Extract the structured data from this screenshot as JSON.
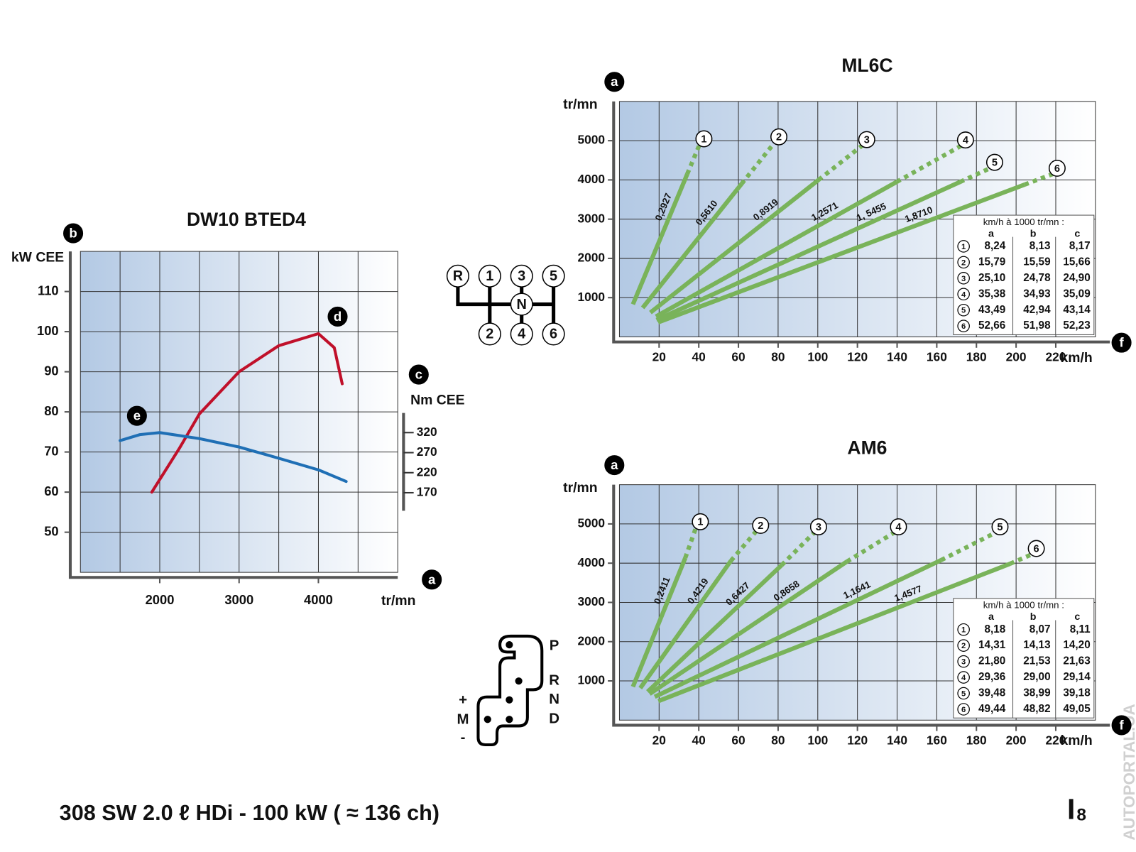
{
  "chart_data": [
    {
      "type": "line",
      "title": "DW10 BTED4",
      "x_label": "tr/mn",
      "y_label": "kW CEE",
      "y2_label": "Nm CEE",
      "xlim": [
        1000,
        5000
      ],
      "xticks": [
        2000,
        3000,
        4000
      ],
      "xgrid": [
        1500,
        2000,
        2500,
        3000,
        3500,
        4000,
        4500
      ],
      "ylim": [
        40,
        120
      ],
      "yticks": [
        50,
        60,
        70,
        80,
        90,
        100,
        110
      ],
      "grid": true,
      "y2lim": [
        125,
        369
      ],
      "y2ticks": [
        170,
        220,
        270,
        320
      ],
      "annotations": [
        "b",
        "c",
        "d",
        "e",
        "a"
      ],
      "series": [
        {
          "color": "#c0102a",
          "x": [
            1900,
            2250,
            2500,
            3000,
            3500,
            4000,
            4200,
            4300
          ],
          "values": [
            60,
            71,
            79.5,
            90,
            96.5,
            99.5,
            96,
            87
          ]
        },
        {
          "color": "#1f6fb5",
          "axis": "y2",
          "x": [
            1500,
            1750,
            2000,
            2500,
            3000,
            3500,
            4000,
            4350
          ],
          "values": [
            300,
            315,
            320,
            305,
            284,
            256,
            227,
            198
          ]
        }
      ]
    },
    {
      "type": "gear",
      "title": "ML6C",
      "x_label": "km/h",
      "y_label": "tr/mn",
      "xlim": [
        0,
        240
      ],
      "xticks": [
        20,
        40,
        60,
        80,
        100,
        120,
        140,
        160,
        180,
        200,
        220
      ],
      "ylim": [
        0,
        6000
      ],
      "yticks": [
        1000,
        2000,
        3000,
        4000,
        5000
      ],
      "grid": true,
      "dashed_last_segment": true,
      "annotations": [
        "a",
        "f"
      ],
      "series": [
        {
          "name": "1",
          "ratio": "0,2927",
          "color": "#79b35a",
          "x": [
            6.8,
            34.2,
            40.4
          ],
          "values": [
            830,
            4150,
            4900
          ]
        },
        {
          "name": "2",
          "ratio": "0,5610",
          "color": "#79b35a",
          "x": [
            11.7,
            61.6,
            78.2
          ],
          "values": [
            740,
            3900,
            4950
          ]
        },
        {
          "name": "3",
          "ratio": "0,8919",
          "color": "#79b35a",
          "x": [
            15.6,
            100.4,
            122.5
          ],
          "values": [
            620,
            4000,
            4880
          ]
        },
        {
          "name": "4",
          "ratio": "1,2571",
          "color": "#79b35a",
          "x": [
            18.4,
            139.8,
            172.3
          ],
          "values": [
            520,
            3950,
            4870
          ]
        },
        {
          "name": "5",
          "ratio": "1, 5455",
          "color": "#79b35a",
          "x": [
            18.7,
            171.8,
            187.0
          ],
          "values": [
            430,
            3950,
            4300
          ]
        },
        {
          "name": "6",
          "ratio": "1,8710",
          "color": "#79b35a",
          "x": [
            19.5,
            204.3,
            218.5
          ],
          "values": [
            370,
            3880,
            4150
          ]
        }
      ],
      "table": {
        "title": "km/h à 1000 tr/mn :",
        "columns": [
          "a",
          "b",
          "c"
        ],
        "rows": [
          [
            "8,24",
            "8,13",
            "8,17"
          ],
          [
            "15,79",
            "15,59",
            "15,66"
          ],
          [
            "25,10",
            "24,78",
            "24,90"
          ],
          [
            "35,38",
            "34,93",
            "35,09"
          ],
          [
            "43,49",
            "42,94",
            "43,14"
          ],
          [
            "52,66",
            "51,98",
            "52,23"
          ]
        ]
      }
    },
    {
      "type": "gear",
      "title": "AM6",
      "x_label": "km/h",
      "y_label": "tr/mn",
      "xlim": [
        0,
        240
      ],
      "xticks": [
        20,
        40,
        60,
        80,
        100,
        120,
        140,
        160,
        180,
        200,
        220
      ],
      "ylim": [
        0,
        6000
      ],
      "yticks": [
        1000,
        2000,
        3000,
        4000,
        5000
      ],
      "grid": true,
      "dashed_last_segment": true,
      "annotations": [
        "a",
        "f"
      ],
      "series": [
        {
          "name": "1",
          "ratio": "0,2411",
          "color": "#79b35a",
          "x": [
            6.8,
            33.2,
            38.6
          ],
          "values": [
            852,
            4134,
            4908
          ]
        },
        {
          "name": "2",
          "ratio": "0,4219",
          "color": "#79b35a",
          "x": [
            10.5,
            56.2,
            69.0
          ],
          "values": [
            816,
            4060,
            4816
          ]
        },
        {
          "name": "3",
          "ratio": "0,6427",
          "color": "#79b35a",
          "x": [
            14.2,
            81.8,
            98.2
          ],
          "values": [
            724,
            3950,
            4779
          ]
        },
        {
          "name": "4",
          "ratio": "0,8658",
          "color": "#79b35a",
          "x": [
            15.2,
            114.7,
            138.5
          ],
          "values": [
            668,
            4041,
            4779
          ]
        },
        {
          "name": "5",
          "ratio": "1,1641",
          "color": "#79b35a",
          "x": [
            17.8,
            162.2,
            189.7
          ],
          "values": [
            595,
            4078,
            4779
          ]
        },
        {
          "name": "6",
          "ratio": "1,4577",
          "color": "#79b35a",
          "x": [
            19.6,
            197.0,
            208.0
          ],
          "values": [
            484,
            3986,
            4226
          ]
        }
      ],
      "table": {
        "title": "km/h à 1000 tr/mn :",
        "columns": [
          "a",
          "b",
          "c"
        ],
        "rows": [
          [
            "8,18",
            "8,07",
            "8,11"
          ],
          [
            "14,31",
            "14,13",
            "14,20"
          ],
          [
            "21,80",
            "21,53",
            "21,63"
          ],
          [
            "29,36",
            "29,00",
            "29,14"
          ],
          [
            "39,48",
            "38,99",
            "39,18"
          ],
          [
            "49,44",
            "48,82",
            "49,05"
          ]
        ]
      }
    }
  ],
  "shift_patterns": {
    "manual": [
      "R",
      "1",
      "3",
      "5",
      "N",
      "2",
      "4",
      "6"
    ],
    "automatic": {
      "positions": [
        "P",
        "R",
        "N",
        "D"
      ],
      "manual": [
        "+",
        "M",
        "-"
      ]
    }
  },
  "footer": {
    "text": "308 SW 2.0 ℓ HDi - 100 kW ( ≈ 136 ch)",
    "page_letter": "I",
    "page_number": "8",
    "watermark": "AUTOPORTAL.UA"
  }
}
